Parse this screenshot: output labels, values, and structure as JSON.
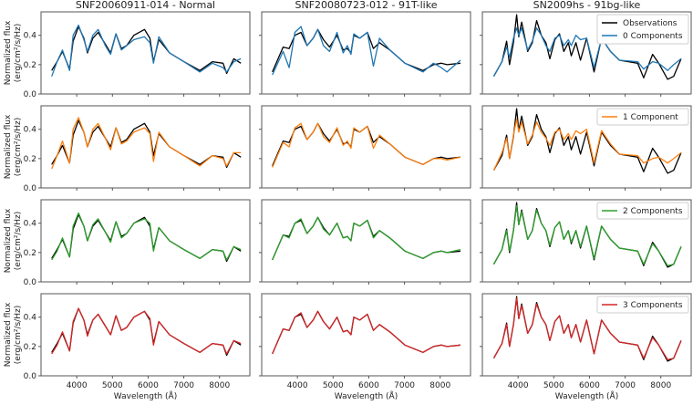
{
  "chart_data": {
    "type": "line",
    "layout": "4 rows x 3 columns",
    "column_titles": [
      "SNF20060911-014 - Normal",
      "SNF20080723-012 - 91T-like",
      "SN2009hs - 91bg-like"
    ],
    "ylabel_line1": "Normalized flux",
    "ylabel_line2": "(erg/cm²/s/Hz)",
    "xlabel": "Wavelength (Å)",
    "xlim": [
      3000,
      8850
    ],
    "ylim": [
      0,
      0.56
    ],
    "xticks": [
      4000,
      5000,
      6000,
      7000,
      8000
    ],
    "yticks": [
      0.0,
      0.2,
      0.4
    ],
    "ytick_labels": [
      "0.0",
      "0.2",
      "0.4"
    ],
    "observation_label": "Observations",
    "observation_color": "#000000",
    "rows": [
      {
        "label": "0 Components",
        "color": "#1f77b4"
      },
      {
        "label": "1 Component",
        "color": "#ff7f0e"
      },
      {
        "label": "2 Components",
        "color": "#2ca02c"
      },
      {
        "label": "3 Components",
        "color": "#d62728"
      }
    ],
    "columns": [
      {
        "wavelength": [
          3300,
          3450,
          3600,
          3800,
          3900,
          4050,
          4200,
          4300,
          4450,
          4600,
          4800,
          4950,
          5100,
          5250,
          5400,
          5600,
          5900,
          6050,
          6150,
          6300,
          6600,
          7000,
          7450,
          7800,
          8100,
          8200,
          8400,
          8600
        ],
        "observations": [
          0.16,
          0.22,
          0.29,
          0.17,
          0.36,
          0.46,
          0.38,
          0.28,
          0.38,
          0.42,
          0.34,
          0.28,
          0.41,
          0.31,
          0.33,
          0.4,
          0.44,
          0.38,
          0.22,
          0.37,
          0.28,
          0.22,
          0.16,
          0.22,
          0.21,
          0.14,
          0.24,
          0.21
        ],
        "models": [
          [
            0.12,
            0.22,
            0.3,
            0.16,
            0.4,
            0.47,
            0.37,
            0.29,
            0.4,
            0.44,
            0.33,
            0.27,
            0.41,
            0.3,
            0.33,
            0.37,
            0.39,
            0.35,
            0.21,
            0.39,
            0.28,
            0.22,
            0.15,
            0.21,
            0.18,
            0.15,
            0.22,
            0.24
          ],
          [
            0.13,
            0.22,
            0.32,
            0.17,
            0.4,
            0.48,
            0.38,
            0.28,
            0.4,
            0.44,
            0.34,
            0.26,
            0.41,
            0.3,
            0.32,
            0.38,
            0.41,
            0.37,
            0.18,
            0.38,
            0.28,
            0.22,
            0.15,
            0.22,
            0.2,
            0.15,
            0.24,
            0.24
          ],
          [
            0.15,
            0.21,
            0.3,
            0.17,
            0.38,
            0.47,
            0.38,
            0.28,
            0.39,
            0.43,
            0.34,
            0.27,
            0.41,
            0.3,
            0.33,
            0.4,
            0.43,
            0.4,
            0.21,
            0.37,
            0.28,
            0.22,
            0.16,
            0.22,
            0.21,
            0.15,
            0.24,
            0.22
          ],
          [
            0.15,
            0.21,
            0.3,
            0.17,
            0.37,
            0.46,
            0.38,
            0.27,
            0.38,
            0.42,
            0.34,
            0.28,
            0.41,
            0.31,
            0.33,
            0.4,
            0.44,
            0.39,
            0.21,
            0.37,
            0.28,
            0.22,
            0.16,
            0.22,
            0.21,
            0.15,
            0.24,
            0.22
          ]
        ]
      },
      {
        "wavelength": [
          3300,
          3600,
          3770,
          3930,
          4100,
          4270,
          4440,
          4570,
          4730,
          4900,
          5110,
          5280,
          5400,
          5500,
          5580,
          5750,
          5960,
          6130,
          6300,
          6590,
          7010,
          7520,
          7810,
          8030,
          8190,
          8570
        ],
        "observations": [
          0.15,
          0.32,
          0.31,
          0.4,
          0.42,
          0.33,
          0.38,
          0.44,
          0.37,
          0.32,
          0.4,
          0.3,
          0.31,
          0.28,
          0.4,
          0.38,
          0.42,
          0.31,
          0.35,
          0.3,
          0.21,
          0.16,
          0.2,
          0.21,
          0.2,
          0.21
        ],
        "models": [
          [
            0.13,
            0.29,
            0.18,
            0.42,
            0.46,
            0.33,
            0.38,
            0.44,
            0.33,
            0.29,
            0.42,
            0.28,
            0.33,
            0.27,
            0.41,
            0.38,
            0.42,
            0.19,
            0.38,
            0.3,
            0.21,
            0.15,
            0.21,
            0.18,
            0.15,
            0.23
          ],
          [
            0.14,
            0.31,
            0.28,
            0.41,
            0.44,
            0.33,
            0.38,
            0.44,
            0.35,
            0.31,
            0.41,
            0.29,
            0.32,
            0.27,
            0.41,
            0.38,
            0.42,
            0.27,
            0.36,
            0.3,
            0.21,
            0.16,
            0.2,
            0.2,
            0.19,
            0.21
          ],
          [
            0.15,
            0.32,
            0.3,
            0.4,
            0.43,
            0.33,
            0.38,
            0.44,
            0.36,
            0.32,
            0.4,
            0.3,
            0.31,
            0.28,
            0.4,
            0.38,
            0.42,
            0.3,
            0.35,
            0.3,
            0.21,
            0.16,
            0.2,
            0.21,
            0.2,
            0.22
          ],
          [
            0.15,
            0.32,
            0.31,
            0.4,
            0.43,
            0.33,
            0.38,
            0.44,
            0.37,
            0.32,
            0.4,
            0.3,
            0.31,
            0.28,
            0.4,
            0.38,
            0.42,
            0.31,
            0.35,
            0.3,
            0.21,
            0.16,
            0.2,
            0.21,
            0.2,
            0.21
          ]
        ]
      },
      {
        "wavelength": [
          3320,
          3550,
          3680,
          3760,
          3870,
          3960,
          4020,
          4100,
          4270,
          4400,
          4520,
          4650,
          4780,
          4890,
          5030,
          5160,
          5280,
          5410,
          5490,
          5620,
          5750,
          5920,
          6130,
          6340,
          6590,
          6840,
          7350,
          7520,
          7770,
          7940,
          8190,
          8360,
          8570
        ],
        "observations": [
          0.12,
          0.22,
          0.36,
          0.2,
          0.35,
          0.54,
          0.39,
          0.49,
          0.29,
          0.35,
          0.5,
          0.4,
          0.35,
          0.24,
          0.37,
          0.41,
          0.29,
          0.35,
          0.26,
          0.35,
          0.23,
          0.38,
          0.15,
          0.38,
          0.29,
          0.23,
          0.21,
          0.11,
          0.27,
          0.21,
          0.1,
          0.12,
          0.24
        ],
        "models": [
          [
            0.12,
            0.22,
            0.32,
            0.25,
            0.38,
            0.45,
            0.4,
            0.45,
            0.3,
            0.36,
            0.45,
            0.4,
            0.33,
            0.29,
            0.38,
            0.4,
            0.33,
            0.37,
            0.33,
            0.4,
            0.37,
            0.38,
            0.18,
            0.38,
            0.29,
            0.23,
            0.22,
            0.17,
            0.22,
            0.21,
            0.16,
            0.2,
            0.24
          ],
          [
            0.12,
            0.24,
            0.34,
            0.2,
            0.36,
            0.47,
            0.38,
            0.45,
            0.3,
            0.36,
            0.45,
            0.38,
            0.34,
            0.29,
            0.38,
            0.4,
            0.33,
            0.37,
            0.33,
            0.39,
            0.37,
            0.4,
            0.17,
            0.39,
            0.3,
            0.23,
            0.22,
            0.17,
            0.2,
            0.21,
            0.17,
            0.2,
            0.24
          ],
          [
            0.12,
            0.22,
            0.35,
            0.21,
            0.35,
            0.52,
            0.39,
            0.48,
            0.29,
            0.35,
            0.49,
            0.4,
            0.35,
            0.25,
            0.37,
            0.41,
            0.29,
            0.35,
            0.27,
            0.35,
            0.24,
            0.38,
            0.16,
            0.38,
            0.29,
            0.23,
            0.21,
            0.12,
            0.26,
            0.21,
            0.11,
            0.12,
            0.24
          ],
          [
            0.12,
            0.22,
            0.35,
            0.2,
            0.35,
            0.53,
            0.39,
            0.48,
            0.29,
            0.35,
            0.49,
            0.4,
            0.35,
            0.24,
            0.37,
            0.41,
            0.29,
            0.35,
            0.26,
            0.35,
            0.23,
            0.38,
            0.15,
            0.38,
            0.29,
            0.23,
            0.21,
            0.12,
            0.26,
            0.21,
            0.11,
            0.12,
            0.24
          ]
        ]
      }
    ]
  }
}
